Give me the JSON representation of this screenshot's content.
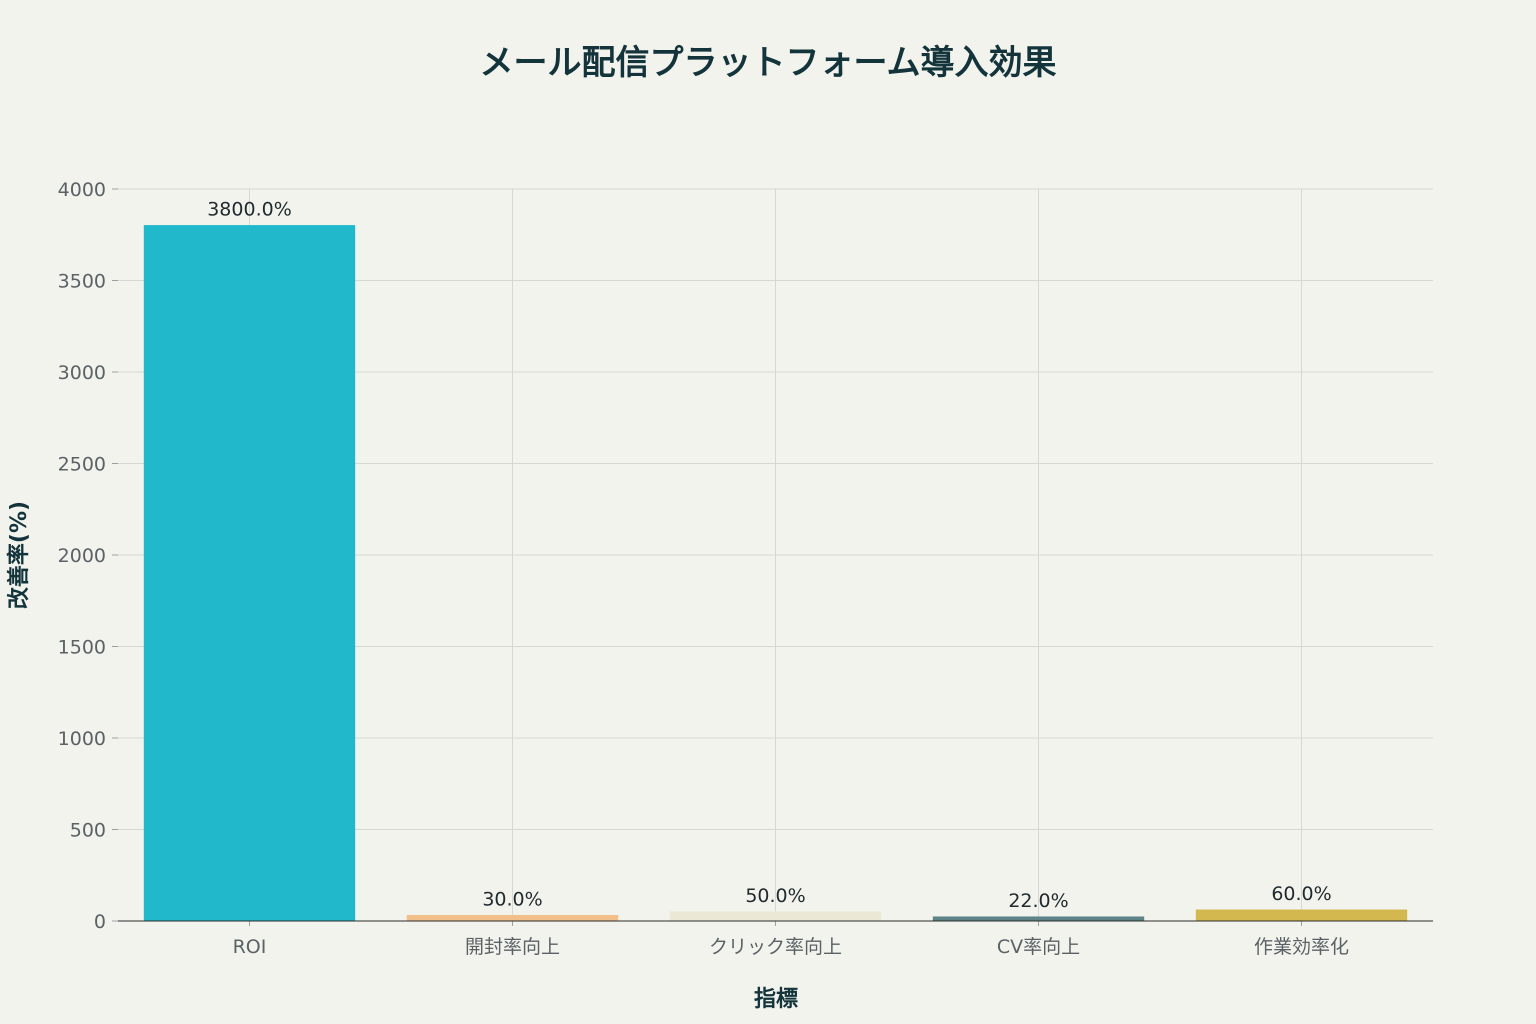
{
  "chart_data": {
    "type": "bar",
    "title": "メール配信プラットフォーム導入効果",
    "xlabel": "指標",
    "ylabel": "改善率(%)",
    "categories": [
      "ROI",
      "開封率向上",
      "クリック率向上",
      "CV率向上",
      "作業効率化"
    ],
    "values": [
      3800,
      30,
      50,
      22,
      60
    ],
    "data_labels": [
      "3800.0%",
      "30.0%",
      "50.0%",
      "22.0%",
      "60.0%"
    ],
    "colors": [
      "#21b8cc",
      "#f2be8a",
      "#ebe9d6",
      "#5e8488",
      "#d2b84f"
    ],
    "ylim": [
      0,
      4000
    ],
    "yticks": [
      0,
      500,
      1000,
      1500,
      2000,
      2500,
      3000,
      3500,
      4000
    ],
    "grid": true,
    "legend": "none"
  }
}
